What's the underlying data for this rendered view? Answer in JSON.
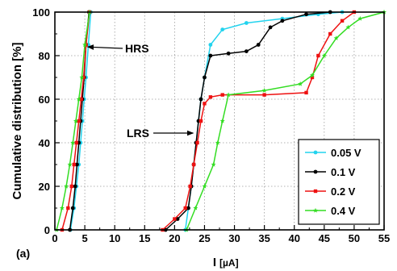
{
  "chart_data": {
    "type": "scatter",
    "panel_label": "(a)",
    "xlabel": "I",
    "xlabel_unit": "[µA]",
    "ylabel": "Cumulative distribution [%]",
    "xlim": [
      0,
      55
    ],
    "ylim": [
      0,
      100
    ],
    "x_ticks": [
      "0",
      "5",
      "10",
      "15",
      "20",
      "25",
      "30",
      "35",
      "40",
      "45",
      "50",
      "55"
    ],
    "y_ticks": [
      "0",
      "20",
      "40",
      "60",
      "80",
      "100"
    ],
    "grid": true,
    "legend_position": "bottom-right",
    "annotations": [
      {
        "text": "HRS",
        "arrow_to": [
          5.2,
          84
        ]
      },
      {
        "text": "LRS",
        "arrow_to": [
          23.5,
          58
        ]
      }
    ],
    "series": [
      {
        "name": "0.05 V",
        "color": "#22d3ee",
        "marker": "circle",
        "hrs": {
          "x": [
            2.6,
            3.2,
            3.6,
            4.0,
            4.3,
            4.6,
            4.9,
            5.2,
            5.6,
            6.0
          ],
          "y": [
            0,
            10,
            20,
            30,
            40,
            50,
            60,
            70,
            85,
            100
          ]
        },
        "lrs": {
          "x": [
            21.8,
            22.3,
            22.8,
            23.2,
            23.6,
            24.0,
            24.4,
            25.0,
            26.0,
            28.0,
            32.0,
            38.0,
            44.0,
            48.0
          ],
          "y": [
            0,
            10,
            20,
            30,
            40,
            50,
            60,
            70,
            85,
            92,
            95,
            97,
            99,
            100
          ]
        }
      },
      {
        "name": "0.1 V",
        "color": "#000000",
        "marker": "circle",
        "hrs": {
          "x": [
            2.5,
            3.0,
            3.4,
            3.7,
            4.0,
            4.3,
            4.6,
            4.9,
            5.2,
            5.7
          ],
          "y": [
            0,
            10,
            20,
            30,
            40,
            50,
            60,
            70,
            85,
            100
          ]
        },
        "lrs": {
          "x": [
            18.5,
            20.5,
            22.3,
            22.8,
            23.2,
            23.6,
            24.0,
            24.4,
            25.0,
            26.0,
            29.0,
            32.0,
            34.0,
            36.0,
            38.0,
            42.0,
            46.0
          ],
          "y": [
            0,
            5,
            10,
            20,
            30,
            40,
            50,
            60,
            70,
            80,
            81,
            82,
            85,
            93,
            96,
            99,
            100
          ]
        }
      },
      {
        "name": "0.2 V",
        "color": "#ee1111",
        "marker": "square",
        "hrs": {
          "x": [
            1.2,
            2.2,
            2.8,
            3.2,
            3.6,
            4.0,
            4.4,
            4.8,
            5.2,
            5.8
          ],
          "y": [
            0,
            10,
            20,
            30,
            40,
            50,
            60,
            70,
            85,
            100
          ]
        },
        "lrs": {
          "x": [
            18.0,
            20.0,
            21.8,
            22.6,
            23.2,
            23.8,
            24.4,
            25.0,
            26.0,
            28.0,
            35.0,
            42.0,
            43.0,
            44.0,
            46.0,
            48.0,
            50.0
          ],
          "y": [
            0,
            5,
            10,
            20,
            30,
            40,
            50,
            58,
            61,
            62,
            62,
            63,
            70,
            80,
            90,
            96,
            100
          ]
        }
      },
      {
        "name": "0.4 V",
        "color": "#33dd22",
        "marker": "star",
        "hrs": {
          "x": [
            0.3,
            1.2,
            1.9,
            2.5,
            3.0,
            3.5,
            4.0,
            4.5,
            5.0,
            5.8
          ],
          "y": [
            0,
            10,
            20,
            30,
            40,
            50,
            60,
            70,
            85,
            100
          ]
        },
        "lrs": {
          "x": [
            22.0,
            23.5,
            25.0,
            26.5,
            27.2,
            28.0,
            29.0,
            35.0,
            41.0,
            43.0,
            45.0,
            47.0,
            49.0,
            51.0,
            55.0
          ],
          "y": [
            0,
            10,
            20,
            30,
            40,
            50,
            62,
            64,
            67,
            71,
            80,
            88,
            93,
            97,
            100
          ]
        }
      }
    ]
  }
}
